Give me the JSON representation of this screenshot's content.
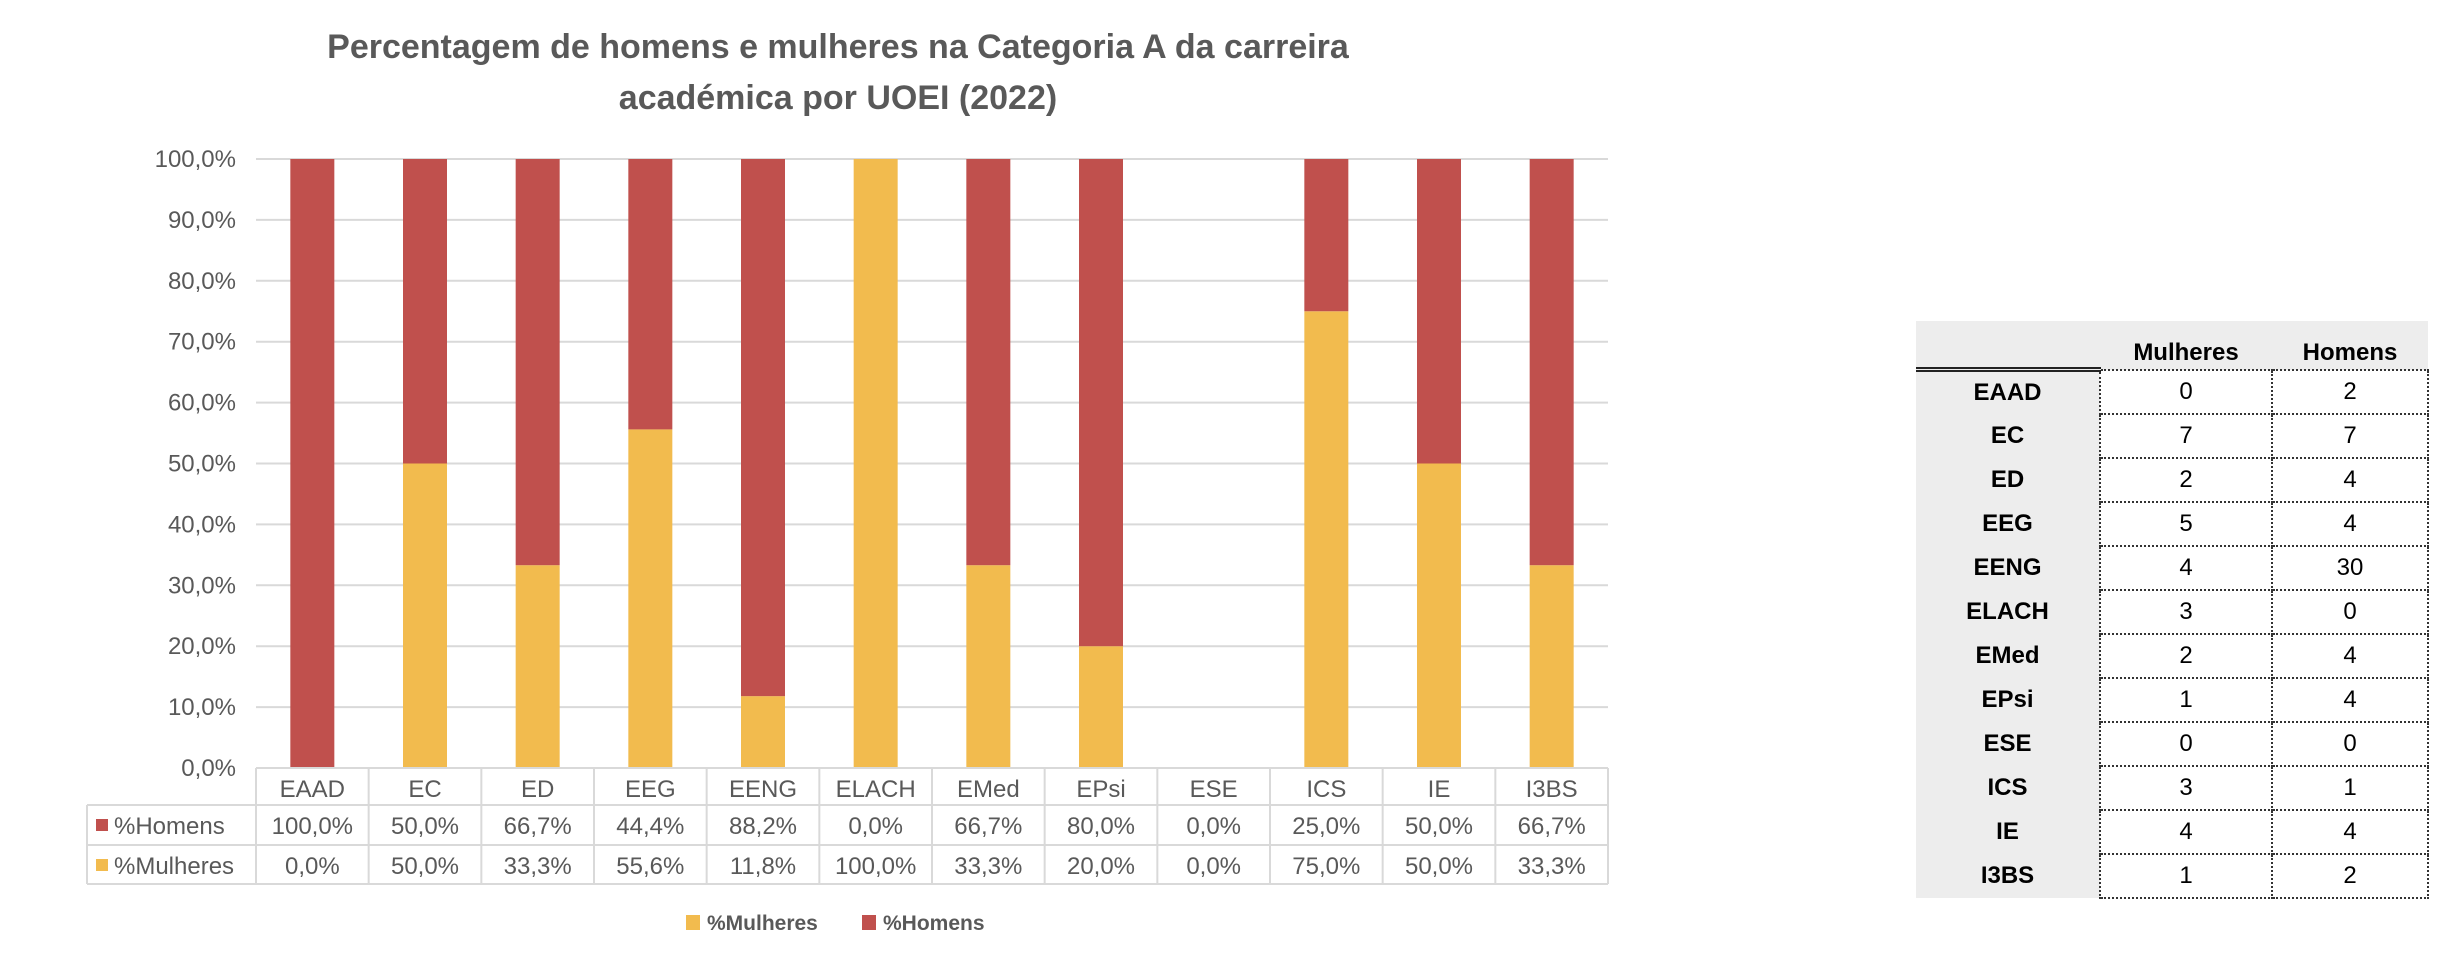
{
  "chart_data": {
    "type": "bar",
    "stacked": true,
    "percent_stacked": true,
    "title": "Percentagem de homens e mulheres na Categoria A da carreira académica por UOEI (2022)",
    "title_lines": [
      "Percentagem de homens e mulheres na Categoria A da carreira",
      "académica por UOEI (2022)"
    ],
    "categories": [
      "EAAD",
      "EC",
      "ED",
      "EEG",
      "EENG",
      "ELACH",
      "EMed",
      "EPsi",
      "ESE",
      "ICS",
      "IE",
      "I3BS"
    ],
    "series": [
      {
        "name": "%Mulheres",
        "color": "#F2BB4E",
        "values": [
          0.0,
          50.0,
          33.3,
          55.6,
          11.8,
          100.0,
          33.3,
          20.0,
          0.0,
          75.0,
          50.0,
          33.3
        ],
        "labels": [
          "0,0%",
          "50,0%",
          "33,3%",
          "55,6%",
          "11,8%",
          "100,0%",
          "33,3%",
          "20,0%",
          "0,0%",
          "75,0%",
          "50,0%",
          "33,3%"
        ]
      },
      {
        "name": "%Homens",
        "color": "#C0504D",
        "values": [
          100.0,
          50.0,
          66.7,
          44.4,
          88.2,
          0.0,
          66.7,
          80.0,
          0.0,
          25.0,
          50.0,
          66.7
        ],
        "labels": [
          "100,0%",
          "50,0%",
          "66,7%",
          "44,4%",
          "88,2%",
          "0,0%",
          "66,7%",
          "80,0%",
          "0,0%",
          "25,0%",
          "50,0%",
          "66,7%"
        ]
      }
    ],
    "ylim": [
      0,
      100
    ],
    "yticks": [
      "0,0%",
      "10,0%",
      "20,0%",
      "30,0%",
      "40,0%",
      "50,0%",
      "60,0%",
      "70,0%",
      "80,0%",
      "90,0%",
      "100,0%"
    ],
    "grid": true,
    "data_table": true,
    "data_table_row_order": [
      "%Homens",
      "%Mulheres"
    ],
    "legend": {
      "position": "bottom",
      "entries": [
        "%Mulheres",
        "%Homens"
      ]
    }
  },
  "counts_table": {
    "headers": [
      "Mulheres",
      "Homens"
    ],
    "rows": [
      {
        "label": "EAAD",
        "mulheres": "0",
        "homens": "2"
      },
      {
        "label": "EC",
        "mulheres": "7",
        "homens": "7"
      },
      {
        "label": "ED",
        "mulheres": "2",
        "homens": "4"
      },
      {
        "label": "EEG",
        "mulheres": "5",
        "homens": "4"
      },
      {
        "label": "EENG",
        "mulheres": "4",
        "homens": "30"
      },
      {
        "label": "ELACH",
        "mulheres": "3",
        "homens": "0"
      },
      {
        "label": "EMed",
        "mulheres": "2",
        "homens": "4"
      },
      {
        "label": "EPsi",
        "mulheres": "1",
        "homens": "4"
      },
      {
        "label": "ESE",
        "mulheres": "0",
        "homens": "0"
      },
      {
        "label": "ICS",
        "mulheres": "3",
        "homens": "1"
      },
      {
        "label": "IE",
        "mulheres": "4",
        "homens": "4"
      },
      {
        "label": "I3BS",
        "mulheres": "1",
        "homens": "2"
      }
    ]
  }
}
